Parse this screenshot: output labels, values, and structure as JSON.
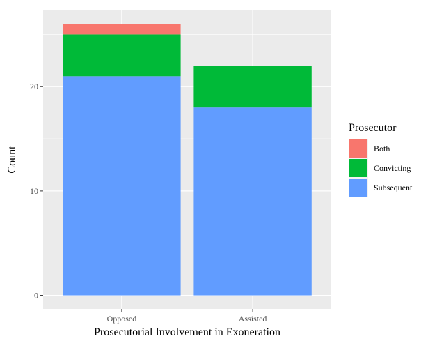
{
  "chart_data": {
    "type": "bar",
    "stacked": true,
    "categories": [
      "Opposed",
      "Assisted"
    ],
    "series": [
      {
        "name": "Subsequent",
        "values": [
          21,
          18
        ],
        "color": "#619CFF"
      },
      {
        "name": "Convicting",
        "values": [
          4,
          4
        ],
        "color": "#00BA38"
      },
      {
        "name": "Both",
        "values": [
          1,
          0
        ],
        "color": "#F8766D"
      }
    ],
    "legend_order": [
      "Both",
      "Convicting",
      "Subsequent"
    ],
    "legend_title": "Prosecutor",
    "legend_position": "right",
    "xlabel": "Prosecutorial Involvement in Exoneration",
    "ylabel": "Count",
    "yticks": [
      0,
      10,
      20
    ],
    "ylim": [
      -1.3,
      27.3
    ],
    "grid": true,
    "panel_background": "#EBEBEB",
    "grid_color": "#FFFFFF"
  }
}
